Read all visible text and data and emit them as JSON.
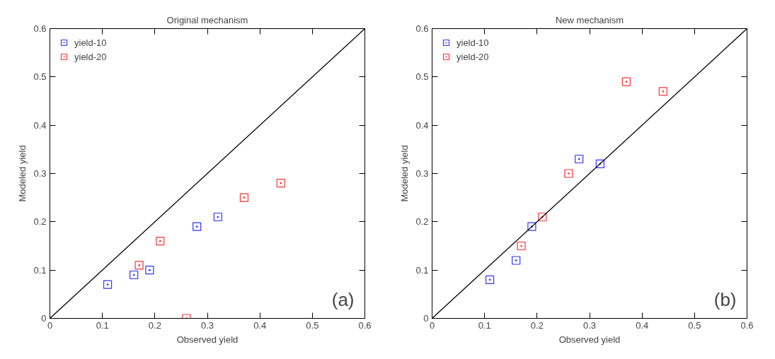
{
  "chart_data": [
    {
      "type": "scatter",
      "title": "Original mechanism",
      "xlabel": "Observed yield",
      "ylabel": "Modeled yield",
      "xlim": [
        0,
        0.6
      ],
      "ylim": [
        0,
        0.6
      ],
      "xticks": [
        0,
        0.1,
        0.2,
        0.3,
        0.4,
        0.5,
        0.6
      ],
      "yticks": [
        0,
        0.1,
        0.2,
        0.3,
        0.4,
        0.5,
        0.6
      ],
      "grid": false,
      "legend": "top left",
      "annotations": [
        "(a)"
      ],
      "series": [
        {
          "name": "yield-10",
          "color": "#3333ff",
          "marker": "square",
          "x": [
            0.11,
            0.16,
            0.19,
            0.28,
            0.32
          ],
          "values": [
            0.07,
            0.09,
            0.1,
            0.19,
            0.21
          ]
        },
        {
          "name": "yield-20",
          "color": "#ff3333",
          "marker": "square",
          "x": [
            0.17,
            0.21,
            0.26,
            0.37,
            0.44
          ],
          "values": [
            0.11,
            0.16,
            0.0,
            0.25,
            0.28
          ]
        },
        {
          "type": "line",
          "color": "#000000",
          "x": [
            0,
            0.6
          ],
          "values": [
            0,
            0.6
          ]
        }
      ]
    },
    {
      "type": "scatter",
      "title": "New mechanism",
      "xlabel": "Observed yield",
      "ylabel": "Modeled yield",
      "xlim": [
        0,
        0.6
      ],
      "ylim": [
        0,
        0.6
      ],
      "xticks": [
        0,
        0.1,
        0.2,
        0.3,
        0.4,
        0.5,
        0.6
      ],
      "yticks": [
        0,
        0.1,
        0.2,
        0.3,
        0.4,
        0.5,
        0.6
      ],
      "grid": false,
      "legend": "top left",
      "annotations": [
        "(b)"
      ],
      "series": [
        {
          "name": "yield-10",
          "color": "#3333ff",
          "marker": "square",
          "x": [
            0.11,
            0.16,
            0.19,
            0.28,
            0.32
          ],
          "values": [
            0.08,
            0.12,
            0.19,
            0.33,
            0.32
          ]
        },
        {
          "name": "yield-20",
          "color": "#ff3333",
          "marker": "square",
          "x": [
            0.17,
            0.21,
            0.26,
            0.37,
            0.44
          ],
          "values": [
            0.15,
            0.21,
            0.3,
            0.49,
            0.47
          ]
        },
        {
          "type": "line",
          "color": "#000000",
          "x": [
            0,
            0.6
          ],
          "values": [
            0,
            0.6
          ]
        }
      ]
    }
  ]
}
